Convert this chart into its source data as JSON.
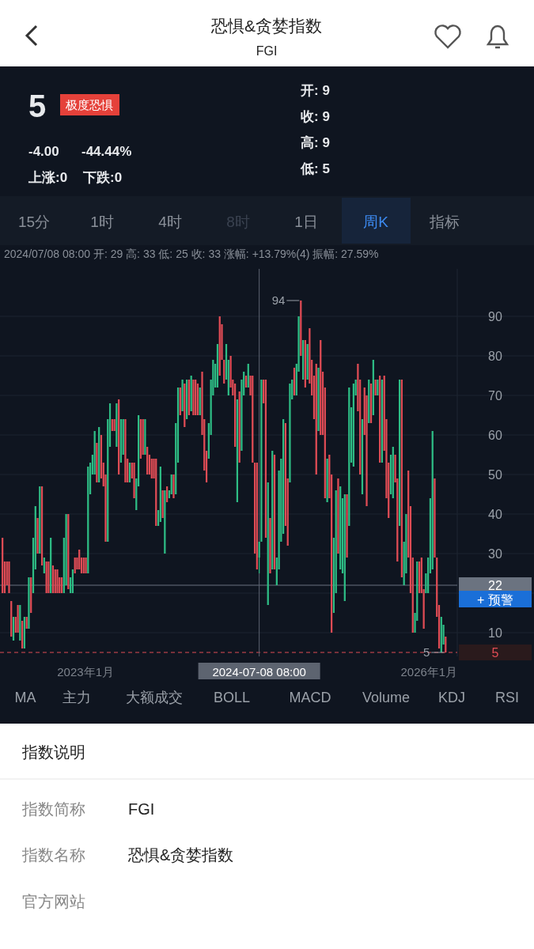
{
  "chart_data": {
    "type": "candlestick",
    "title": "恐惧&贪婪指数",
    "subtitle": "FGI",
    "x": [
      "2022-04-11",
      "2022-04-18",
      "2022-04-25",
      "2022-05-02",
      "2022-05-09",
      "2022-05-16",
      "2022-05-23",
      "2022-05-30",
      "2022-06-06",
      "2022-06-13",
      "2022-06-20",
      "2022-06-27",
      "2022-07-04",
      "2022-07-11",
      "2022-07-18",
      "2022-07-25",
      "2022-08-01",
      "2022-08-08",
      "2022-08-15",
      "2022-08-22",
      "2022-08-29",
      "2022-09-05",
      "2022-09-12",
      "2022-09-19",
      "2022-09-26",
      "2022-10-03",
      "2022-10-10",
      "2022-10-17",
      "2022-10-24",
      "2022-10-31",
      "2022-11-07",
      "2022-11-14",
      "2022-11-21",
      "2022-11-28",
      "2022-12-05",
      "2022-12-12",
      "2022-12-19",
      "2022-12-26",
      "2023-01-02",
      "2023-01-09",
      "2023-01-16",
      "2023-01-23",
      "2023-01-30",
      "2023-02-06",
      "2023-02-13",
      "2023-02-20",
      "2023-02-27",
      "2023-03-06",
      "2023-03-13",
      "2023-03-20",
      "2023-03-27",
      "2023-04-03",
      "2023-04-10",
      "2023-04-17",
      "2023-04-24",
      "2023-05-01",
      "2023-05-08",
      "2023-05-15",
      "2023-05-22",
      "2023-05-29",
      "2023-06-05",
      "2023-06-12",
      "2023-06-19",
      "2023-06-26",
      "2023-07-03",
      "2023-07-10",
      "2023-07-17",
      "2023-07-24",
      "2023-07-31",
      "2023-08-07",
      "2023-08-14",
      "2023-08-21",
      "2023-08-28",
      "2023-09-04",
      "2023-09-11",
      "2023-09-18",
      "2023-09-25",
      "2023-10-02",
      "2023-10-09",
      "2023-10-16",
      "2023-10-23",
      "2023-10-30",
      "2023-11-06",
      "2023-11-13",
      "2023-11-20",
      "2023-11-27",
      "2023-12-04",
      "2023-12-11",
      "2023-12-18",
      "2023-12-25",
      "2024-01-01",
      "2024-01-08",
      "2024-01-15",
      "2024-01-22",
      "2024-01-29",
      "2024-02-05",
      "2024-02-12",
      "2024-02-19",
      "2024-02-26",
      "2024-03-04",
      "2024-03-11",
      "2024-03-18",
      "2024-03-25",
      "2024-04-01",
      "2024-04-08",
      "2024-04-15",
      "2024-04-22",
      "2024-04-29",
      "2024-05-06",
      "2024-05-13",
      "2024-05-20",
      "2024-05-27",
      "2024-06-03",
      "2024-06-10",
      "2024-06-17",
      "2024-06-24",
      "2024-07-01",
      "2024-07-08",
      "2024-07-15",
      "2024-07-22",
      "2024-07-29",
      "2024-08-05",
      "2024-08-12",
      "2024-08-19",
      "2024-08-26",
      "2024-09-02",
      "2024-09-09",
      "2024-09-16",
      "2024-09-23",
      "2024-09-30",
      "2024-10-07",
      "2024-10-14",
      "2024-10-21",
      "2024-10-28",
      "2024-11-04",
      "2024-11-11",
      "2024-11-18",
      "2024-11-25",
      "2024-12-02",
      "2024-12-09",
      "2024-12-16",
      "2024-12-23",
      "2024-12-30",
      "2025-01-06",
      "2025-01-13",
      "2025-01-20",
      "2025-01-27",
      "2025-02-03",
      "2025-02-10",
      "2025-02-17",
      "2025-02-24",
      "2025-03-03",
      "2025-03-10",
      "2025-03-17",
      "2025-03-24",
      "2025-03-31",
      "2025-04-07",
      "2025-04-14",
      "2025-04-21",
      "2025-04-28",
      "2025-05-05",
      "2025-05-12",
      "2025-05-19",
      "2025-05-26",
      "2025-06-02",
      "2025-06-09",
      "2025-06-16",
      "2025-06-23",
      "2025-06-30",
      "2025-07-07",
      "2025-07-14",
      "2025-07-21",
      "2025-07-28",
      "2025-08-04",
      "2025-08-11",
      "2025-08-18",
      "2025-08-25",
      "2025-09-01",
      "2025-09-08",
      "2025-09-15",
      "2025-09-22",
      "2025-09-29",
      "2025-10-06",
      "2025-10-13",
      "2025-10-20",
      "2025-10-27",
      "2025-11-03",
      "2025-11-10",
      "2025-11-17",
      "2025-11-24",
      "2025-12-01",
      "2025-12-08",
      "2025-12-15",
      "2025-12-22",
      "2025-12-29",
      "2026-01-05",
      "2026-01-12",
      "2026-01-19",
      "2026-01-26",
      "2026-02-02",
      "2026-02-09",
      "2026-02-16",
      "2026-02-23"
    ],
    "ohlc": [
      [
        34,
        34,
        20,
        20
      ],
      [
        28,
        28,
        20,
        20
      ],
      [
        28,
        28,
        22,
        22
      ],
      [
        28,
        28,
        20,
        20
      ],
      [
        18,
        18,
        9,
        9
      ],
      [
        8,
        14,
        8,
        14
      ],
      [
        14,
        14,
        10,
        10
      ],
      [
        17,
        17,
        10,
        10
      ],
      [
        8,
        17,
        8,
        17
      ],
      [
        13,
        13,
        6,
        6
      ],
      [
        6,
        14,
        6,
        14
      ],
      [
        14,
        14,
        11,
        11
      ],
      [
        11,
        24,
        11,
        24
      ],
      [
        24,
        24,
        15,
        15
      ],
      [
        20,
        34,
        20,
        34
      ],
      [
        26,
        42,
        26,
        42
      ],
      [
        39,
        39,
        30,
        30
      ],
      [
        30,
        47,
        30,
        47
      ],
      [
        47,
        47,
        27,
        27
      ],
      [
        25,
        29,
        25,
        29
      ],
      [
        28,
        28,
        20,
        20
      ],
      [
        28,
        28,
        20,
        20
      ],
      [
        20,
        34,
        20,
        34
      ],
      [
        27,
        27,
        20,
        20
      ],
      [
        26,
        26,
        20,
        20
      ],
      [
        26,
        26,
        20,
        20
      ],
      [
        24,
        24,
        20,
        20
      ],
      [
        24,
        24,
        20,
        20
      ],
      [
        20,
        34,
        20,
        34
      ],
      [
        22,
        40,
        22,
        40
      ],
      [
        40,
        40,
        21,
        21
      ],
      [
        20,
        24,
        20,
        24
      ],
      [
        20,
        26,
        20,
        26
      ],
      [
        29,
        29,
        25,
        25
      ],
      [
        29,
        29,
        26,
        26
      ],
      [
        31,
        31,
        26,
        26
      ],
      [
        29,
        29,
        25,
        25
      ],
      [
        29,
        29,
        25,
        25
      ],
      [
        29,
        29,
        25,
        25
      ],
      [
        25,
        52,
        25,
        52
      ],
      [
        45,
        53,
        45,
        53
      ],
      [
        50,
        55,
        50,
        55
      ],
      [
        50,
        61,
        50,
        61
      ],
      [
        58,
        58,
        48,
        48
      ],
      [
        48,
        62,
        48,
        62
      ],
      [
        60,
        60,
        49,
        49
      ],
      [
        53,
        53,
        47,
        47
      ],
      [
        50,
        50,
        33,
        33
      ],
      [
        33,
        64,
        33,
        64
      ],
      [
        57,
        68,
        57,
        68
      ],
      [
        64,
        64,
        61,
        61
      ],
      [
        64,
        64,
        61,
        61
      ],
      [
        57,
        68,
        57,
        68
      ],
      [
        69,
        69,
        50,
        50
      ],
      [
        53,
        64,
        53,
        64
      ],
      [
        55,
        64,
        55,
        64
      ],
      [
        64,
        64,
        48,
        48
      ],
      [
        54,
        54,
        48,
        48
      ],
      [
        48,
        53,
        48,
        53
      ],
      [
        53,
        53,
        49,
        49
      ],
      [
        53,
        53,
        44,
        44
      ],
      [
        41,
        49,
        41,
        49
      ],
      [
        47,
        65,
        47,
        65
      ],
      [
        64,
        64,
        54,
        54
      ],
      [
        64,
        64,
        55,
        55
      ],
      [
        55,
        64,
        55,
        64
      ],
      [
        57,
        57,
        50,
        50
      ],
      [
        55,
        55,
        50,
        50
      ],
      [
        54,
        54,
        49,
        49
      ],
      [
        54,
        54,
        49,
        49
      ],
      [
        54,
        54,
        37,
        37
      ],
      [
        37,
        41,
        37,
        41
      ],
      [
        38,
        52,
        38,
        52
      ],
      [
        46,
        46,
        39,
        39
      ],
      [
        30,
        46,
        30,
        46
      ],
      [
        47,
        47,
        43,
        43
      ],
      [
        44,
        46,
        44,
        46
      ],
      [
        45,
        50,
        45,
        50
      ],
      [
        50,
        50,
        44,
        44
      ],
      [
        45,
        63,
        45,
        63
      ],
      [
        53,
        72,
        53,
        72
      ],
      [
        72,
        72,
        65,
        65
      ],
      [
        66,
        74,
        66,
        74
      ],
      [
        73,
        73,
        62,
        62
      ],
      [
        64,
        74,
        64,
        74
      ],
      [
        74,
        74,
        65,
        65
      ],
      [
        66,
        75,
        66,
        75
      ],
      [
        74,
        74,
        65,
        65
      ],
      [
        74,
        74,
        65,
        65
      ],
      [
        73,
        73,
        65,
        65
      ],
      [
        65,
        72,
        65,
        72
      ],
      [
        76,
        76,
        60,
        60
      ],
      [
        64,
        64,
        51,
        51
      ],
      [
        56,
        56,
        48,
        48
      ],
      [
        54,
        63,
        54,
        63
      ],
      [
        60,
        74,
        60,
        74
      ],
      [
        70,
        79,
        70,
        79
      ],
      [
        72,
        78,
        72,
        78
      ],
      [
        72,
        83,
        72,
        83
      ],
      [
        90,
        90,
        75,
        75
      ],
      [
        88,
        88,
        79,
        79
      ],
      [
        79,
        79,
        73,
        73
      ],
      [
        74,
        83,
        74,
        83
      ],
      [
        70,
        79,
        70,
        79
      ],
      [
        80,
        80,
        72,
        72
      ],
      [
        74,
        74,
        70,
        70
      ],
      [
        73,
        73,
        57,
        57
      ],
      [
        43,
        69,
        43,
        69
      ],
      [
        71,
        71,
        53,
        53
      ],
      [
        56,
        74,
        56,
        74
      ],
      [
        70,
        76,
        70,
        76
      ],
      [
        75,
        75,
        72,
        72
      ],
      [
        72,
        78,
        72,
        78
      ],
      [
        75,
        75,
        70,
        70
      ],
      [
        75,
        75,
        53,
        53
      ],
      [
        53,
        53,
        30,
        30
      ],
      [
        53,
        53,
        26,
        26
      ],
      [
        29,
        33,
        25,
        33
      ],
      [
        33,
        74,
        33,
        74
      ],
      [
        74,
        74,
        68,
        68
      ],
      [
        74,
        74,
        34,
        34
      ],
      [
        17,
        48,
        17,
        48
      ],
      [
        39,
        39,
        25,
        25
      ],
      [
        26,
        56,
        26,
        56
      ],
      [
        55,
        55,
        26,
        26
      ],
      [
        22,
        29,
        22,
        29
      ],
      [
        26,
        51,
        26,
        51
      ],
      [
        33,
        54,
        33,
        54
      ],
      [
        35,
        64,
        35,
        64
      ],
      [
        63,
        63,
        37,
        37
      ],
      [
        49,
        49,
        32,
        32
      ],
      [
        48,
        73,
        48,
        73
      ],
      [
        69,
        74,
        69,
        74
      ],
      [
        77,
        77,
        70,
        70
      ],
      [
        70,
        78,
        70,
        78
      ],
      [
        76,
        90,
        76,
        90
      ],
      [
        94,
        94,
        80,
        80
      ],
      [
        74,
        84,
        74,
        84
      ],
      [
        84,
        84,
        72,
        72
      ],
      [
        74,
        83,
        74,
        83
      ],
      [
        87,
        87,
        73,
        73
      ],
      [
        79,
        79,
        70,
        70
      ],
      [
        75,
        75,
        64,
        64
      ],
      [
        78,
        78,
        50,
        50
      ],
      [
        61,
        77,
        61,
        77
      ],
      [
        84,
        84,
        60,
        60
      ],
      [
        76,
        76,
        60,
        60
      ],
      [
        72,
        72,
        44,
        44
      ],
      [
        43,
        54,
        43,
        54
      ],
      [
        55,
        55,
        44,
        44
      ],
      [
        50,
        50,
        10,
        10
      ],
      [
        15,
        34,
        15,
        34
      ],
      [
        20,
        46,
        20,
        46
      ],
      [
        49,
        49,
        30,
        30
      ],
      [
        26,
        47,
        26,
        47
      ],
      [
        25,
        44,
        25,
        44
      ],
      [
        18,
        45,
        18,
        45
      ],
      [
        45,
        45,
        29,
        29
      ],
      [
        37,
        72,
        37,
        72
      ],
      [
        53,
        67,
        53,
        67
      ],
      [
        52,
        73,
        52,
        73
      ],
      [
        70,
        74,
        70,
        74
      ],
      [
        78,
        78,
        66,
        66
      ],
      [
        74,
        74,
        50,
        50
      ],
      [
        45,
        64,
        45,
        64
      ],
      [
        72,
        72,
        60,
        60
      ],
      [
        70,
        70,
        42,
        42
      ],
      [
        63,
        74,
        63,
        74
      ],
      [
        73,
        73,
        63,
        63
      ],
      [
        65,
        79,
        65,
        79
      ],
      [
        74,
        74,
        70,
        70
      ],
      [
        70,
        74,
        70,
        74
      ],
      [
        75,
        75,
        53,
        53
      ],
      [
        53,
        74,
        53,
        74
      ],
      [
        75,
        75,
        56,
        56
      ],
      [
        64,
        64,
        44,
        44
      ],
      [
        53,
        53,
        39,
        39
      ],
      [
        45,
        55,
        45,
        55
      ],
      [
        44,
        57,
        44,
        57
      ],
      [
        55,
        55,
        48,
        48
      ],
      [
        49,
        49,
        28,
        28
      ],
      [
        37,
        74,
        37,
        74
      ],
      [
        74,
        74,
        24,
        24
      ],
      [
        22,
        33,
        22,
        33
      ],
      [
        25,
        40,
        25,
        40
      ],
      [
        51,
        51,
        29,
        29
      ],
      [
        42,
        42,
        20,
        20
      ],
      [
        29,
        29,
        10,
        10
      ],
      [
        10,
        15,
        10,
        15
      ],
      [
        13,
        28,
        13,
        28
      ],
      [
        28,
        28,
        20,
        20
      ],
      [
        29,
        29,
        20,
        20
      ],
      [
        21,
        21,
        11,
        11
      ],
      [
        20,
        25,
        20,
        25
      ],
      [
        20,
        29,
        20,
        29
      ],
      [
        25,
        44,
        25,
        44
      ],
      [
        26,
        61,
        26,
        61
      ],
      [
        49,
        49,
        29,
        29
      ],
      [
        29,
        29,
        14,
        14
      ],
      [
        17,
        17,
        6,
        6
      ],
      [
        5,
        14,
        5,
        14
      ],
      [
        7,
        12,
        7,
        12
      ],
      [
        9,
        9,
        5,
        5
      ]
    ],
    "xlim": [
      "2022-04-03",
      "2026-04-01"
    ],
    "xticks": [
      {
        "value": "2023-01-01",
        "label": "2023年1月"
      },
      {
        "value": "2026-01-01",
        "label": "2026年1月"
      }
    ],
    "ylim": [
      4,
      102
    ],
    "yticks": [
      10,
      {
        "value": 20,
        "label": null
      },
      30,
      40,
      50,
      60,
      70,
      80,
      90
    ],
    "grid": "y",
    "ref_lines": [
      {
        "axis": "y",
        "value": 5,
        "label": "5",
        "line_style": "dashed",
        "color": "#e04c55"
      },
      {
        "axis": "y",
        "value": 22,
        "label": "22",
        "color": "#6b7380"
      },
      {
        "axis": "x",
        "value": "2024-07-08",
        "label": "2024-07-08 08:00",
        "color": "#5d6470"
      }
    ],
    "annotations": [
      "5",
      "极度恐惧",
      "-4.00",
      "-44.44%",
      "上涨:0",
      "下跌:0",
      "开: 9",
      "收: 9",
      "高: 9",
      "低: 5",
      "15分",
      "1时",
      "4时",
      "8时",
      "1日",
      "周K",
      "指标",
      "2024/07/08 08:00 开: 29 高: 33 低: 25 收: 33 涨幅: +13.79%(4) 振幅: 27.59%",
      "+ 预警",
      "MA",
      "主力",
      "大额成交",
      "BOLL",
      "MACD",
      "Volume",
      "KDJ",
      "RSI",
      "指数说明",
      "指数简称",
      "FGI",
      "指数名称",
      "恐惧&贪婪指数",
      "官方网站",
      {
        "text": "94",
        "x": "2024-11-18",
        "y": 94
      },
      {
        "text": "5",
        "x": "2026-02-23",
        "y": 5
      }
    ]
  }
}
